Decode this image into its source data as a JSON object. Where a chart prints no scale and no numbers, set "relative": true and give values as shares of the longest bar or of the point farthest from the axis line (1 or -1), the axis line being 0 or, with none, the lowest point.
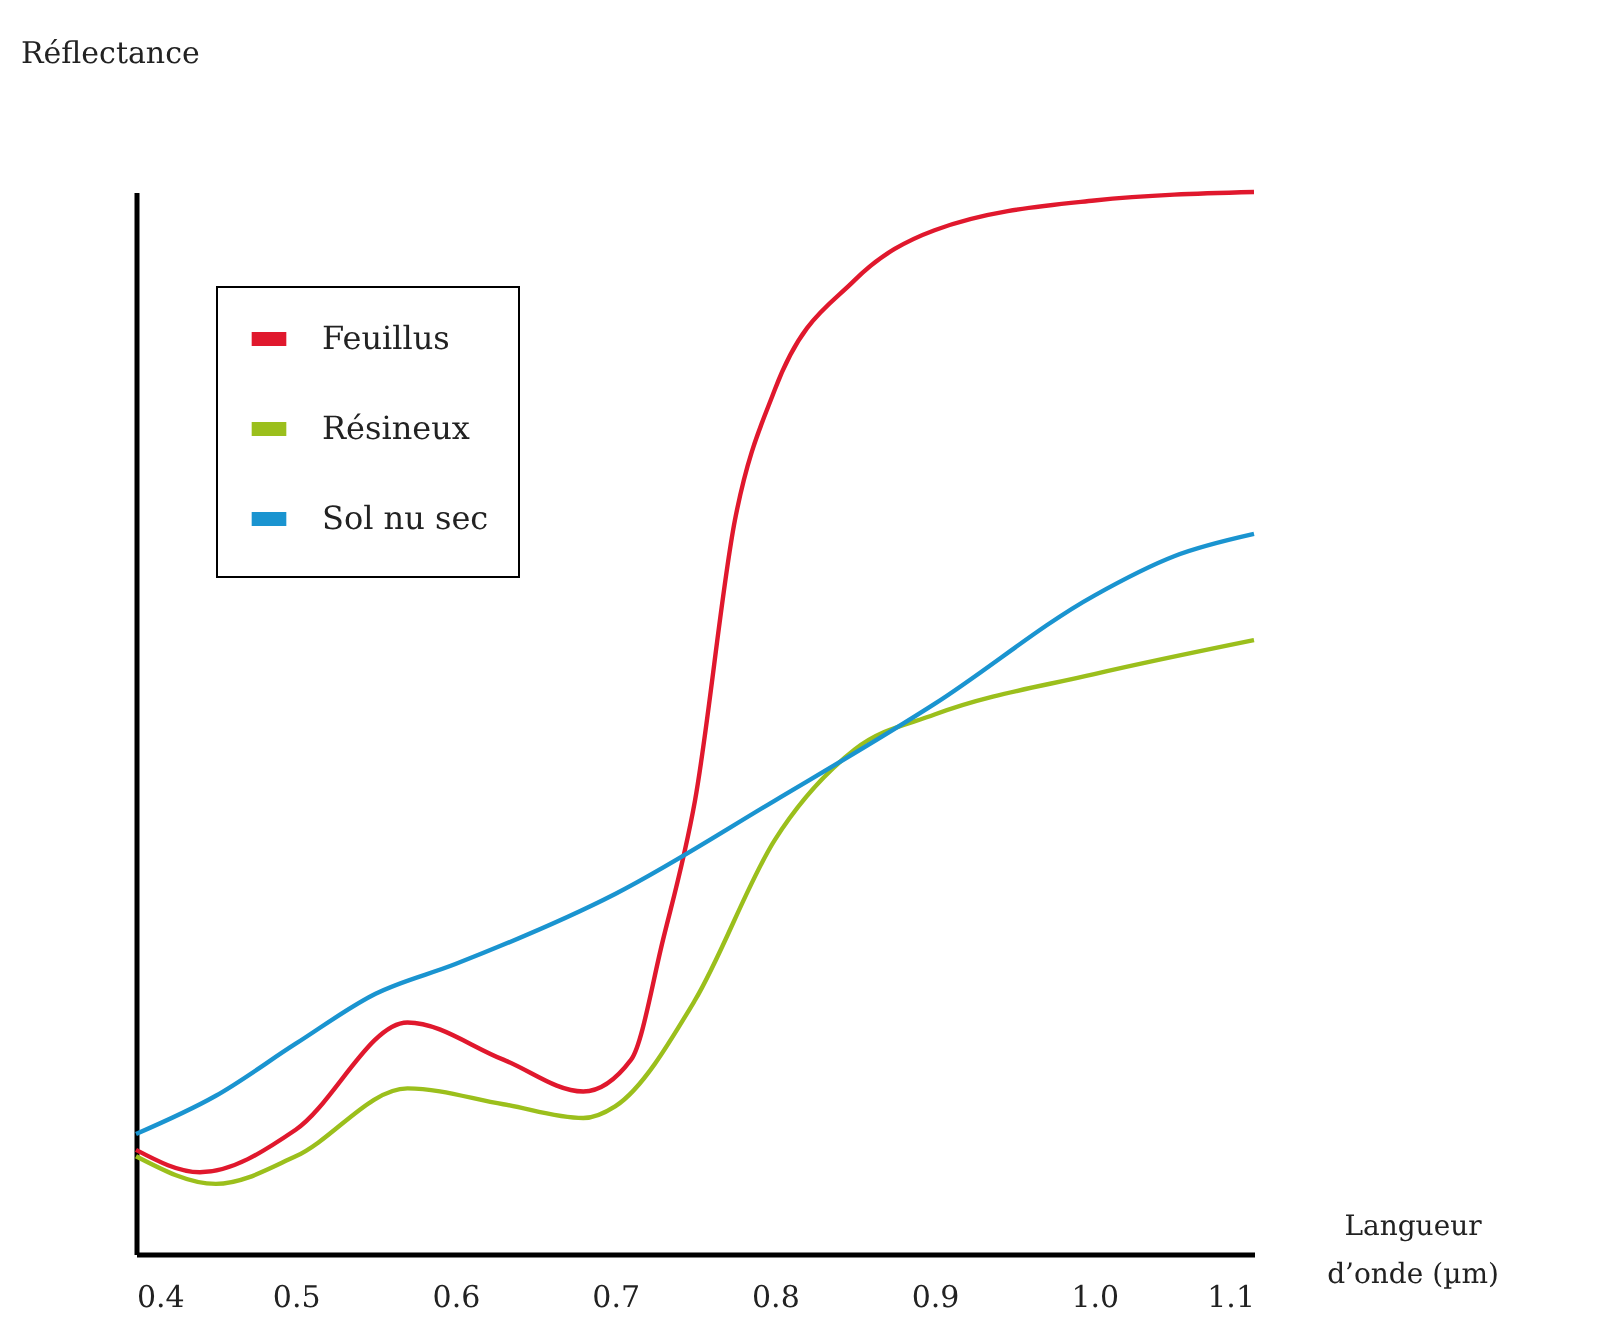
{
  "chart_data": {
    "type": "line",
    "relative": true,
    "ylabel": "Réflectance",
    "xlabel": "Langueur d’onde (µm)",
    "xlim": [
      0.4,
      1.1
    ],
    "xticks": [
      0.4,
      0.5,
      0.6,
      0.7,
      0.8,
      0.9,
      {
        "value": 1.0,
        "label": "1.0"
      },
      1.1
    ],
    "grid": false,
    "legend": "top left",
    "marker": "none",
    "line_style": "solid",
    "series": [
      {
        "name": "Feuillus",
        "color": "#e0182d",
        "x": [
          0.4,
          0.44,
          0.5,
          0.57,
          0.63,
          0.68,
          0.71,
          0.73,
          0.75,
          0.775,
          0.8,
          0.85,
          0.9,
          1.0,
          1.1
        ],
        "values": [
          0.098,
          0.077,
          0.117,
          0.218,
          0.183,
          0.153,
          0.183,
          0.296,
          0.427,
          0.691,
          0.814,
          0.917,
          0.964,
          0.992,
          1
        ]
      },
      {
        "name": "Résineux",
        "color": "#9bbf1c",
        "x": [
          0.4,
          0.45,
          0.5,
          0.57,
          0.63,
          0.68,
          0.7,
          0.75,
          0.8,
          0.85,
          0.9,
          1.0,
          1.1
        ],
        "values": [
          0.092,
          0.066,
          0.092,
          0.156,
          0.141,
          0.128,
          0.139,
          0.239,
          0.39,
          0.475,
          0.508,
          0.546,
          0.578
        ]
      },
      {
        "name": "Sol nu sec",
        "color": "#1a94d0",
        "x": [
          0.4,
          0.45,
          0.5,
          0.55,
          0.6,
          0.7,
          0.8,
          0.9,
          1.0,
          1.05,
          1.1
        ],
        "values": [
          0.113,
          0.149,
          0.198,
          0.245,
          0.273,
          0.339,
          0.427,
          0.518,
          0.62,
          0.657,
          0.678
        ]
      }
    ]
  }
}
